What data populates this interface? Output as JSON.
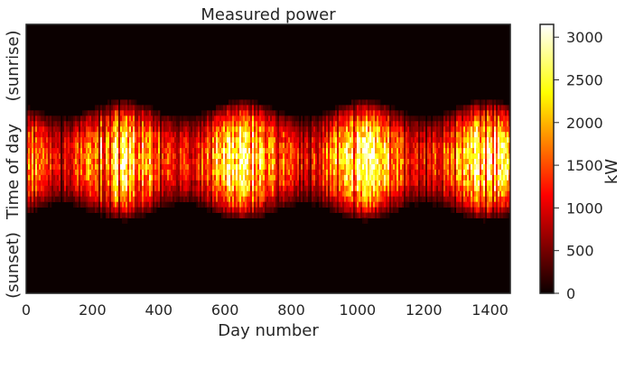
{
  "chart_data": {
    "type": "heatmap",
    "title": "Measured power",
    "xlabel": "Day number",
    "ylabel": "Time of day",
    "ylabel_top": "(sunrise)",
    "ylabel_bottom": "(sunset)",
    "xlim": [
      0,
      1461
    ],
    "xticks": [
      0,
      200,
      400,
      600,
      800,
      1000,
      1200,
      1400
    ],
    "colorbar": {
      "label": "kW",
      "range": [
        0,
        3150
      ],
      "ticks": [
        0,
        500,
        1000,
        1500,
        2000,
        2500,
        3000
      ],
      "colormap": "hot",
      "colors": [
        "#0b0000",
        "#ff0000",
        "#ffff00",
        "#ffffff"
      ]
    },
    "pattern": {
      "description_of_values": "daytime power production per day; seasonal variation",
      "peak_kW": 3150,
      "summer_band_days": [
        300,
        650,
        1030,
        1390
      ],
      "winter_band_days": [
        100,
        480,
        850,
        1220
      ]
    },
    "grid": false
  }
}
